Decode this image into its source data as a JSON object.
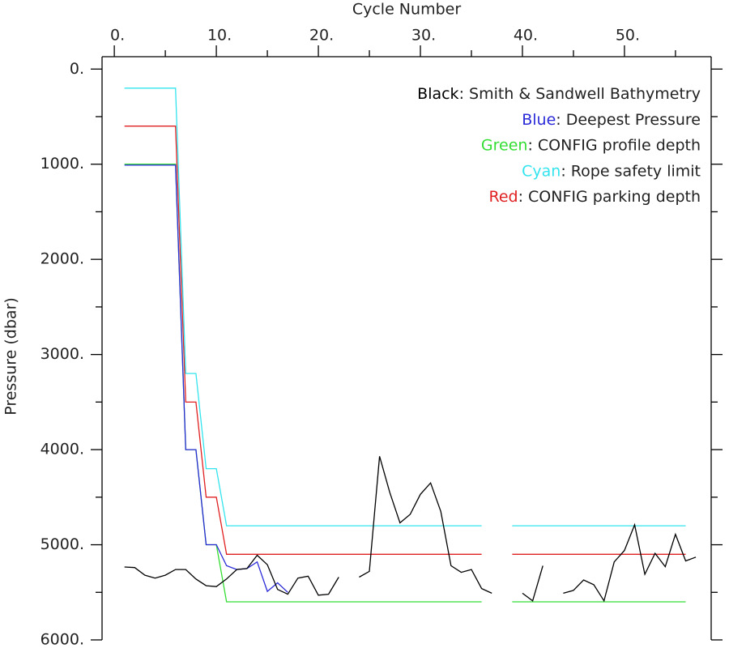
{
  "chart_data": {
    "type": "line",
    "x_label": "Cycle Number",
    "y_label": "Pressure (dbar)",
    "x": [
      1,
      2,
      3,
      4,
      5,
      6,
      7,
      8,
      9,
      10,
      11,
      12,
      13,
      14,
      15,
      16,
      17,
      18,
      19,
      20,
      21,
      22,
      23,
      24,
      25,
      26,
      27,
      28,
      29,
      30,
      31,
      32,
      33,
      34,
      35,
      36,
      37,
      38,
      39,
      40,
      41,
      42,
      43,
      44,
      45,
      46,
      47,
      48,
      49,
      50,
      51,
      52,
      53,
      54,
      55,
      56,
      57
    ],
    "xlim": [
      -1.2,
      58.5
    ],
    "xticks": [
      {
        "value": 0,
        "label": "0."
      },
      {
        "value": 10,
        "label": "10."
      },
      {
        "value": 20,
        "label": "20."
      },
      {
        "value": 30,
        "label": "30."
      },
      {
        "value": 40,
        "label": "40."
      },
      {
        "value": 50,
        "label": "50."
      }
    ],
    "xminorticks": [
      5,
      15,
      25,
      35,
      45,
      55
    ],
    "ylim": [
      -130,
      6000
    ],
    "y_inverted": true,
    "yticks": [
      {
        "value": 0,
        "label": "0."
      },
      {
        "value": 1000,
        "label": "1000."
      },
      {
        "value": 2000,
        "label": "2000."
      },
      {
        "value": 3000,
        "label": "3000."
      },
      {
        "value": 4000,
        "label": "4000."
      },
      {
        "value": 5000,
        "label": "5000."
      },
      {
        "value": 6000,
        "label": "6000."
      }
    ],
    "yminorticks": [
      500,
      1500,
      2500,
      3500,
      4500,
      5500
    ],
    "series": [
      {
        "name": "Black: Smith & Sandwell Bathymetry",
        "color": "#000000",
        "values": [
          5234,
          5240,
          5320,
          5350,
          5320,
          5260,
          5260,
          5360,
          5430,
          5440,
          5360,
          5260,
          5250,
          5110,
          5210,
          5470,
          5520,
          5350,
          5330,
          5530,
          5520,
          5340,
          null,
          5340,
          5280,
          4070,
          4450,
          4770,
          4680,
          4470,
          4350,
          4650,
          5220,
          5290,
          5260,
          5460,
          5510,
          null,
          null,
          5510,
          5590,
          5220,
          null,
          5510,
          5480,
          5370,
          5420,
          5590,
          5180,
          5060,
          4790,
          5310,
          5090,
          5230,
          4890,
          5170,
          5130
        ]
      },
      {
        "name": "Blue: Deepest Pressure",
        "color": "#2a2ad8",
        "values": [
          1010,
          1010,
          1010,
          1010,
          1010,
          1010,
          4000,
          4000,
          5000,
          5000,
          5220,
          5260,
          5250,
          5180,
          5490,
          5400,
          5500,
          null,
          null,
          null,
          null,
          null,
          null,
          null,
          null,
          null,
          null,
          null,
          null,
          null,
          null,
          null,
          null,
          null,
          null,
          null,
          null,
          null,
          null,
          null,
          null,
          null,
          null,
          null,
          null,
          null,
          null,
          null,
          null,
          null,
          null,
          null,
          null,
          null,
          null,
          null,
          null
        ]
      },
      {
        "name": "Green: CONFIG profile depth",
        "color": "#33dd33",
        "values": [
          1000,
          1000,
          1000,
          1000,
          1000,
          1000,
          4000,
          4000,
          5000,
          5000,
          5600,
          5600,
          5600,
          5600,
          5600,
          5600,
          5600,
          5600,
          5600,
          5600,
          5600,
          5600,
          5600,
          5600,
          5600,
          5600,
          5600,
          5600,
          5600,
          5600,
          5600,
          5600,
          5600,
          5600,
          5600,
          5600,
          null,
          null,
          5600,
          5600,
          5600,
          5600,
          5600,
          5600,
          5600,
          5600,
          5600,
          5600,
          5600,
          5600,
          5600,
          5600,
          5600,
          5600,
          5600,
          5600,
          null
        ]
      },
      {
        "name": "Cyan: Rope safety limit",
        "color": "#33e4ee",
        "values": [
          200,
          200,
          200,
          200,
          200,
          200,
          3200,
          3200,
          4200,
          4200,
          4800,
          4800,
          4800,
          4800,
          4800,
          4800,
          4800,
          4800,
          4800,
          4800,
          4800,
          4800,
          4800,
          4800,
          4800,
          4800,
          4800,
          4800,
          4800,
          4800,
          4800,
          4800,
          4800,
          4800,
          4800,
          4800,
          null,
          null,
          4800,
          4800,
          4800,
          4800,
          4800,
          4800,
          4800,
          4800,
          4800,
          4800,
          4800,
          4800,
          4800,
          4800,
          4800,
          4800,
          4800,
          4800,
          null
        ]
      },
      {
        "name": "Red: CONFIG parking depth",
        "color": "#e02020",
        "values": [
          600,
          600,
          600,
          600,
          600,
          600,
          3500,
          3500,
          4500,
          4500,
          5100,
          5100,
          5100,
          5100,
          5100,
          5100,
          5100,
          5100,
          5100,
          5100,
          5100,
          5100,
          5100,
          5100,
          5100,
          5100,
          5100,
          5100,
          5100,
          5100,
          5100,
          5100,
          5100,
          5100,
          5100,
          5100,
          null,
          null,
          5100,
          5100,
          5100,
          5100,
          5100,
          5100,
          5100,
          5100,
          5100,
          5100,
          5100,
          5100,
          5100,
          5100,
          5100,
          5100,
          5100,
          5100,
          null
        ]
      }
    ]
  }
}
